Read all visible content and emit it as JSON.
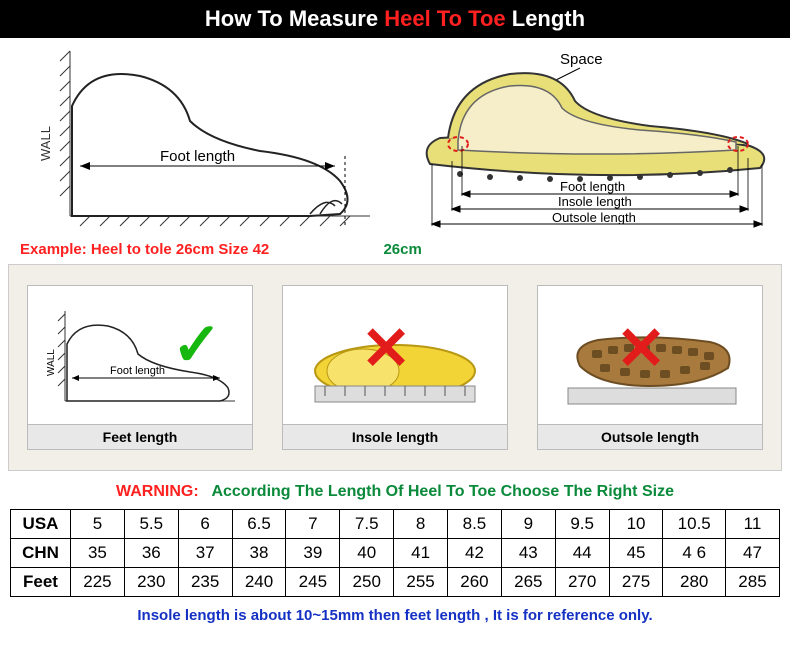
{
  "header": {
    "pre": "How To Measure ",
    "mid": "Heel To Toe",
    "post": " Length"
  },
  "diagrams": {
    "wall_label": "WALL",
    "foot_length": "Foot length",
    "space": "Space",
    "insole_length": "Insole length",
    "outsole_length": "Outsole length"
  },
  "example": {
    "label": "Example: Heel to tole 26cm Size 42",
    "cm": "26cm",
    "label_color": "#ff2020",
    "cm_color": "#0a8a3a"
  },
  "three": {
    "bg_color": "#f1efe8",
    "cells": [
      {
        "label": "Feet length",
        "mark": "check",
        "mark_color": "#16b80f"
      },
      {
        "label": "Insole length",
        "mark": "cross",
        "mark_color": "#e21b1b"
      },
      {
        "label": "Outsole length",
        "mark": "cross",
        "mark_color": "#e21b1b"
      }
    ]
  },
  "warning": {
    "prefix": "WARNING:",
    "text": "According The Length Of Heel To Toe Choose The Right Size",
    "prefix_color": "#ff2020",
    "text_color": "#0a8a3a"
  },
  "size_table": {
    "headers": [
      "USA",
      "CHN",
      "Feet"
    ],
    "rows": [
      [
        "5",
        "5.5",
        "6",
        "6.5",
        "7",
        "7.5",
        "8",
        "8.5",
        "9",
        "9.5",
        "10",
        "10.5",
        "11"
      ],
      [
        "35",
        "36",
        "37",
        "38",
        "39",
        "40",
        "41",
        "42",
        "43",
        "44",
        "45",
        "4 6",
        "47"
      ],
      [
        "225",
        "230",
        "235",
        "240",
        "245",
        "250",
        "255",
        "260",
        "265",
        "270",
        "275",
        "280",
        "285"
      ]
    ],
    "col_count": 13
  },
  "footnote": {
    "text": "Insole length is about 10~15mm then feet length , It is for reference only.",
    "color": "#1531c4"
  }
}
